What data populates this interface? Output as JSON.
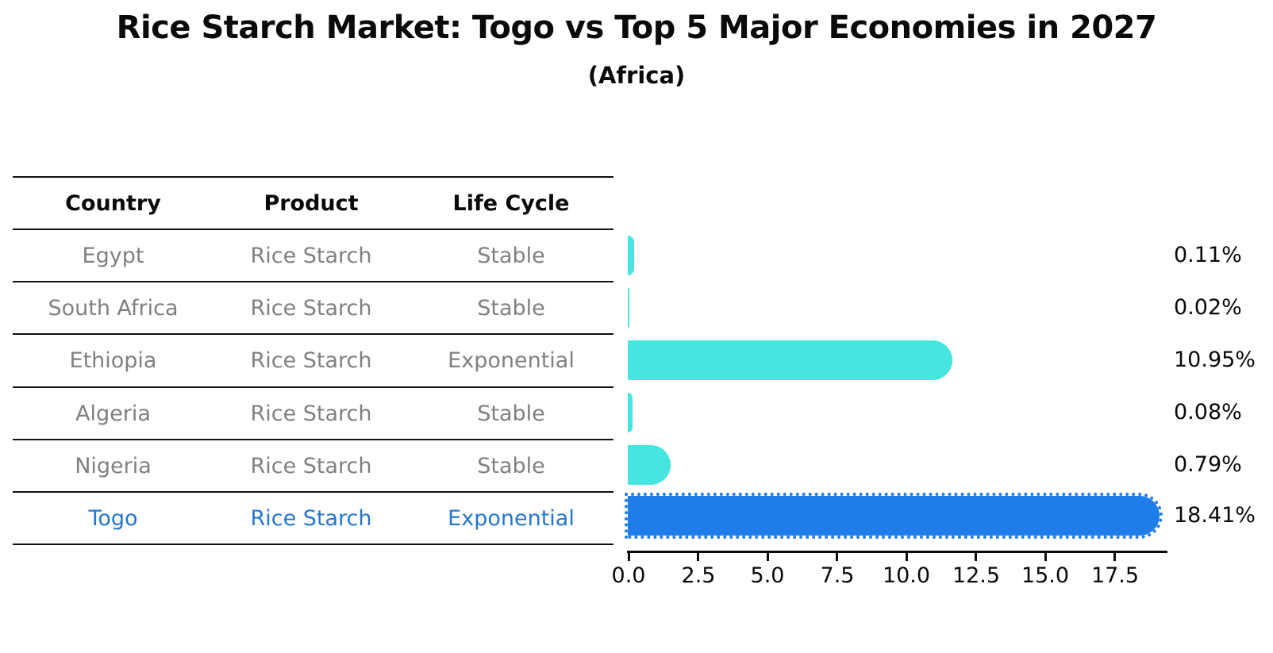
{
  "title": "Rice Starch Market: Togo vs Top 5 Major Economies in 2027",
  "subtitle": "(Africa)",
  "table": {
    "headers": [
      "Country",
      "Product",
      "Life Cycle"
    ],
    "rows": [
      {
        "country": "Egypt",
        "product": "Rice Starch",
        "life_cycle": "Stable",
        "highlight": false
      },
      {
        "country": "South Africa",
        "product": "Rice Starch",
        "life_cycle": "Stable",
        "highlight": false
      },
      {
        "country": "Ethiopia",
        "product": "Rice Starch",
        "life_cycle": "Exponential",
        "highlight": false
      },
      {
        "country": "Algeria",
        "product": "Rice Starch",
        "life_cycle": "Stable",
        "highlight": false
      },
      {
        "country": "Nigeria",
        "product": "Rice Starch",
        "life_cycle": "Stable",
        "highlight": false
      },
      {
        "country": "Togo",
        "product": "Rice Starch",
        "life_cycle": "Exponential",
        "highlight": true
      }
    ]
  },
  "chart_data": {
    "type": "bar",
    "orientation": "horizontal",
    "title": "Rice Starch Market: Togo vs Top 5 Major Economies in 2027",
    "subtitle": "(Africa)",
    "categories": [
      "Egypt",
      "South Africa",
      "Ethiopia",
      "Algeria",
      "Nigeria",
      "Togo"
    ],
    "values": [
      0.11,
      0.02,
      10.95,
      0.08,
      0.79,
      18.41
    ],
    "value_labels": [
      "0.11%",
      "0.02%",
      "10.95%",
      "0.08%",
      "0.79%",
      "18.41%"
    ],
    "unit": "percent",
    "x_ticks": [
      "0.0",
      "2.5",
      "5.0",
      "7.5",
      "10.0",
      "12.5",
      "15.0",
      "17.5"
    ],
    "x_tick_values": [
      0.0,
      2.5,
      5.0,
      7.5,
      10.0,
      12.5,
      15.0,
      17.5
    ],
    "xlim": [
      0,
      19.4
    ],
    "grid": false,
    "legend": "none",
    "highlight_category": "Togo",
    "colors": {
      "default_bar": "#47e5e0",
      "highlight_bar": "#1e7de9",
      "highlight_text": "#2577cd",
      "table_text": "#808080",
      "axis_text": "#0a0a0a"
    }
  }
}
